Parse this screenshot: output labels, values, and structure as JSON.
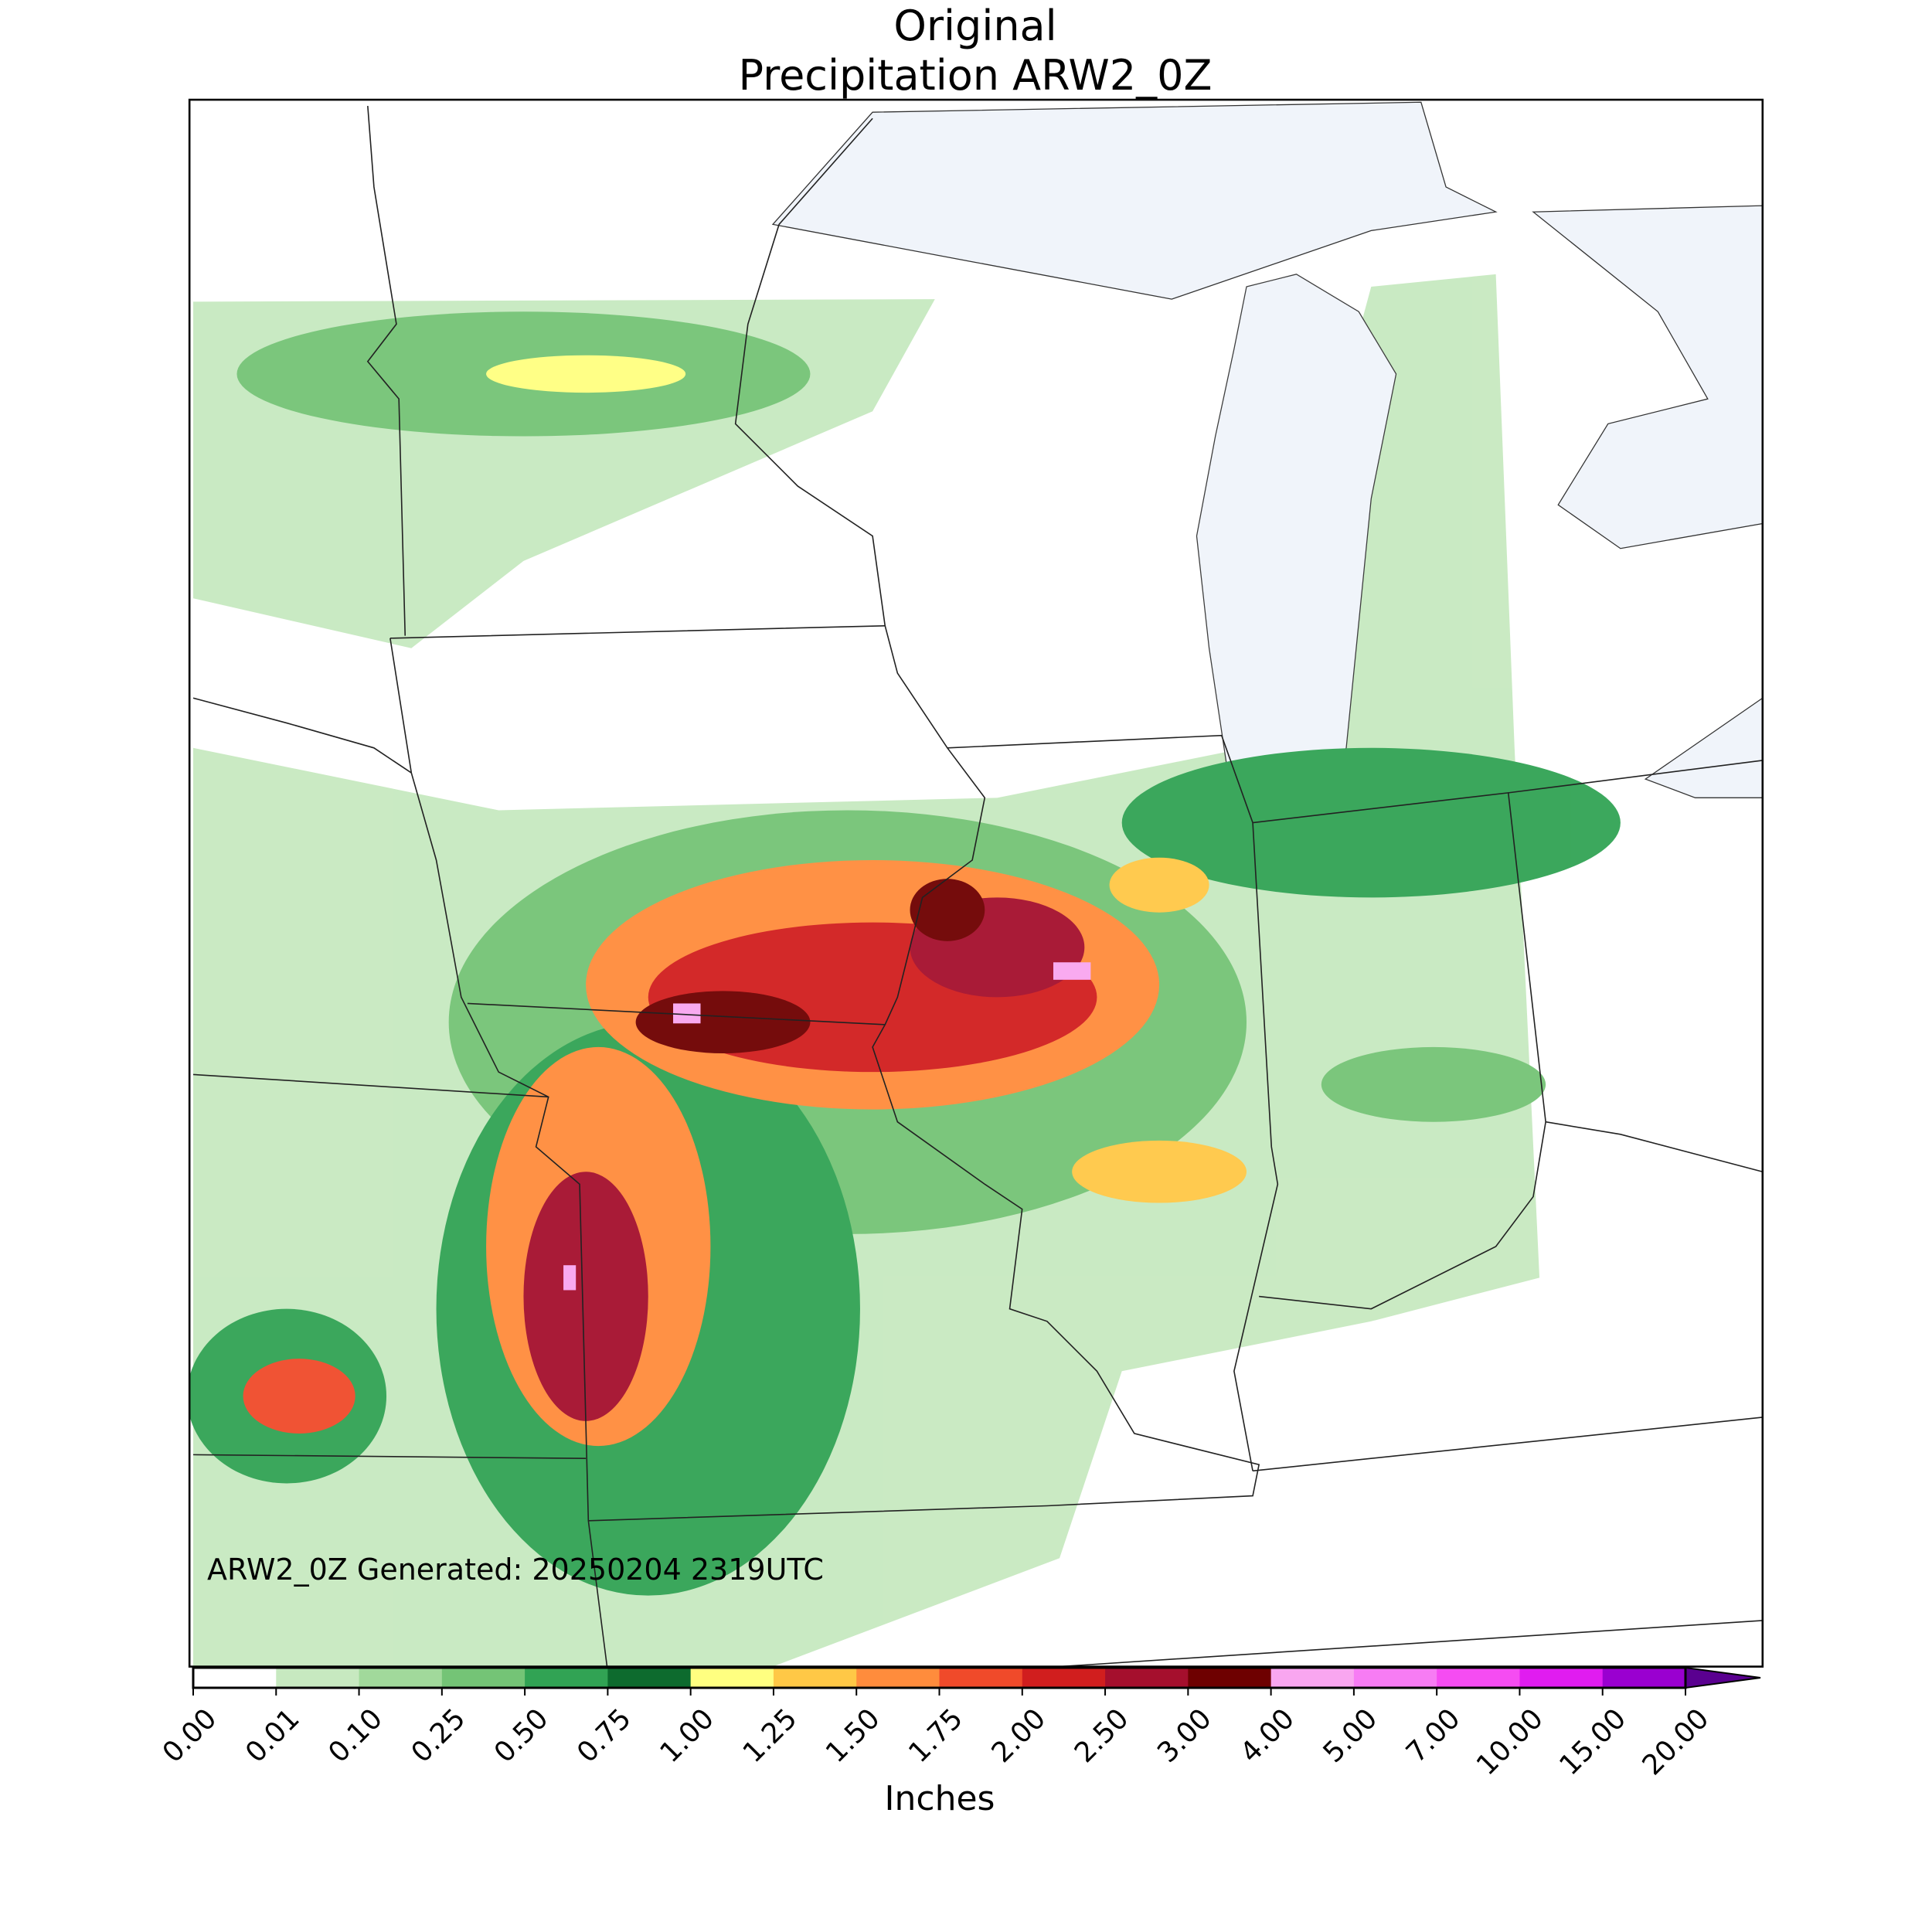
{
  "map": {
    "title": [
      "Original",
      "Precipitation ARW2_0Z"
    ],
    "annotation": "ARW2_0Z Generated: 20250204 2319UTC",
    "colorbar": {
      "label": "Inches",
      "ticks": [
        {
          "value": 0,
          "label": "0.00"
        },
        {
          "value": 0.01,
          "label": "0.01"
        },
        {
          "value": 0.1,
          "label": "0.10"
        },
        {
          "value": 0.25,
          "label": "0.25"
        },
        {
          "value": 0.5,
          "label": "0.50"
        },
        {
          "value": 0.75,
          "label": "0.75"
        },
        {
          "value": 1,
          "label": "1.00"
        },
        {
          "value": 1.25,
          "label": "1.25"
        },
        {
          "value": 1.5,
          "label": "1.50"
        },
        {
          "value": 1.75,
          "label": "1.75"
        },
        {
          "value": 2,
          "label": "2.00"
        },
        {
          "value": 2.5,
          "label": "2.50"
        },
        {
          "value": 3,
          "label": "3.00"
        },
        {
          "value": 4,
          "label": "4.00"
        },
        {
          "value": 5,
          "label": "5.00"
        },
        {
          "value": 7,
          "label": "7.00"
        },
        {
          "value": 10,
          "label": "10.00"
        },
        {
          "value": 15,
          "label": "15.00"
        },
        {
          "value": 20,
          "label": "20.00"
        }
      ],
      "colors": [
        "#ffffff",
        "#c7e9c0",
        "#a1d99b",
        "#74c476",
        "#31a354",
        "#0d6b2e",
        "#ffff80",
        "#ffc846",
        "#ff8c3c",
        "#f04a2a",
        "#d11e1e",
        "#a50f2d",
        "#6e0000",
        "#f9a6f0",
        "#f77cf4",
        "#f54cf2",
        "#e01cf0",
        "#9a00d0"
      ],
      "extend_color": "#5a0090"
    }
  }
}
